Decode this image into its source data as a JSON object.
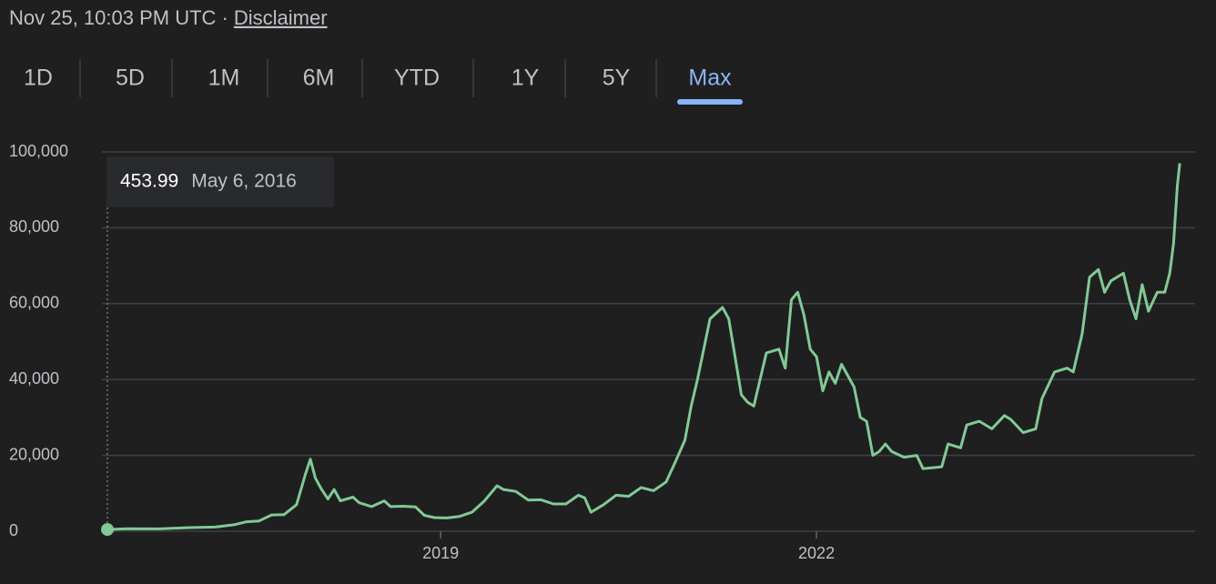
{
  "header": {
    "timestamp": "Nov 25, 10:03 PM UTC ·",
    "link": "Disclaimer"
  },
  "tabs": [
    "1D",
    "5D",
    "1M",
    "6M",
    "YTD",
    "1Y",
    "5Y",
    "Max"
  ],
  "active_tab": "Max",
  "chart_data": {
    "type": "line",
    "tooltip": {
      "value": 453.99,
      "date": "May 6, 2016"
    },
    "color": "#81c995",
    "x": [
      2016.34,
      2016.5,
      2016.75,
      2017.0,
      2017.2,
      2017.35,
      2017.45,
      2017.55,
      2017.65,
      2017.75,
      2017.85,
      2017.92,
      2017.96,
      2018.0,
      2018.05,
      2018.1,
      2018.15,
      2018.2,
      2018.3,
      2018.35,
      2018.45,
      2018.55,
      2018.6,
      2018.7,
      2018.8,
      2018.87,
      2018.95,
      2019.05,
      2019.15,
      2019.25,
      2019.35,
      2019.45,
      2019.5,
      2019.6,
      2019.7,
      2019.8,
      2019.9,
      2020.0,
      2020.1,
      2020.15,
      2020.2,
      2020.3,
      2020.4,
      2020.5,
      2020.6,
      2020.7,
      2020.8,
      2020.87,
      2020.95,
      2021.0,
      2021.05,
      2021.1,
      2021.15,
      2021.25,
      2021.3,
      2021.35,
      2021.4,
      2021.45,
      2021.5,
      2021.55,
      2021.6,
      2021.7,
      2021.75,
      2021.8,
      2021.85,
      2021.9,
      2021.95,
      2022.0,
      2022.05,
      2022.1,
      2022.15,
      2022.2,
      2022.25,
      2022.3,
      2022.35,
      2022.4,
      2022.45,
      2022.5,
      2022.55,
      2022.6,
      2022.7,
      2022.8,
      2022.85,
      2022.95,
      2023.0,
      2023.05,
      2023.15,
      2023.2,
      2023.3,
      2023.4,
      2023.5,
      2023.55,
      2023.65,
      2023.75,
      2023.8,
      2023.9,
      2024.0,
      2024.05,
      2024.12,
      2024.18,
      2024.25,
      2024.3,
      2024.35,
      2024.45,
      2024.5,
      2024.55,
      2024.6,
      2024.65,
      2024.72,
      2024.78,
      2024.82,
      2024.85,
      2024.88,
      2024.9
    ],
    "values": [
      453.99,
      650,
      620,
      950,
      1100,
      1700,
      2500,
      2700,
      4300,
      4400,
      7000,
      15000,
      19000,
      14000,
      11000,
      8500,
      11000,
      8000,
      9000,
      7500,
      6500,
      8000,
      6500,
      6600,
      6400,
      4200,
      3600,
      3500,
      3900,
      5000,
      8000,
      12000,
      11000,
      10500,
      8200,
      8300,
      7200,
      7200,
      9500,
      8800,
      5000,
      7000,
      9500,
      9200,
      11500,
      10700,
      13000,
      18000,
      24000,
      33000,
      40000,
      48000,
      56000,
      59000,
      56000,
      46000,
      36000,
      34000,
      33000,
      40000,
      47000,
      48000,
      43000,
      61000,
      63000,
      57000,
      48000,
      46000,
      37000,
      42000,
      39000,
      44000,
      41000,
      38000,
      30000,
      29000,
      20000,
      21000,
      23000,
      21000,
      19500,
      20000,
      16500,
      16800,
      17000,
      23000,
      22000,
      28000,
      29000,
      27000,
      30500,
      29500,
      26000,
      27000,
      35000,
      42000,
      43000,
      42000,
      52000,
      67000,
      69000,
      63000,
      66000,
      68000,
      61000,
      56000,
      65000,
      58000,
      63000,
      63000,
      68000,
      76000,
      91000,
      97000
    ],
    "xlim": [
      2016.3,
      2025.0
    ],
    "xticks": [
      2019,
      2022
    ],
    "ylim": [
      0,
      100000
    ],
    "yticks": [
      0,
      {
        "value": 20000,
        "label": "20,000"
      },
      {
        "value": 40000,
        "label": "40,000"
      },
      {
        "value": 60000,
        "label": "60,000"
      },
      {
        "value": 80000,
        "label": "80,000"
      },
      {
        "value": 100000,
        "label": "100,000"
      }
    ],
    "grid": true
  }
}
